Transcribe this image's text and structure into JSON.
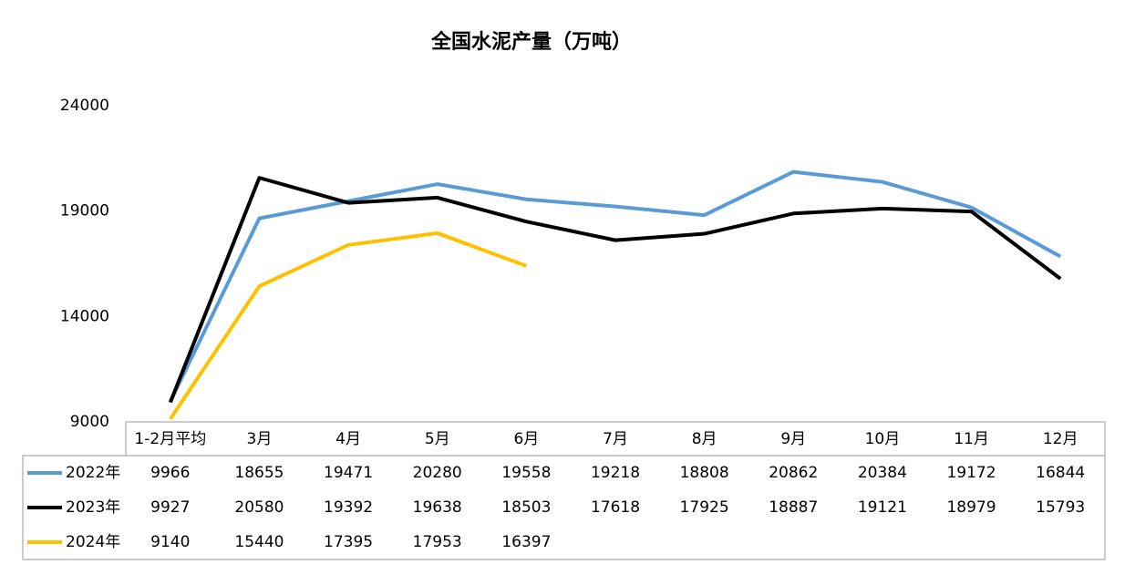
{
  "chart_data": {
    "type": "line",
    "title": "全国水泥产量（万吨）",
    "categories": [
      "1-2月平均",
      "3月",
      "4月",
      "5月",
      "6月",
      "7月",
      "8月",
      "9月",
      "10月",
      "11月",
      "12月"
    ],
    "series": [
      {
        "name": "2022年",
        "color": "#5b9bd5",
        "values": [
          9966,
          18655,
          19471,
          20280,
          19558,
          19218,
          18808,
          20862,
          20384,
          19172,
          16844
        ]
      },
      {
        "name": "2023年",
        "color": "#000000",
        "values": [
          9927,
          20580,
          19392,
          19638,
          18503,
          17618,
          17925,
          18887,
          19121,
          18979,
          15793
        ]
      },
      {
        "name": "2024年",
        "color": "#ffc000",
        "values": [
          9140,
          15440,
          17395,
          17953,
          16397,
          null,
          null,
          null,
          null,
          null,
          null
        ]
      }
    ],
    "ylim": [
      9000,
      24000
    ],
    "yticks": [
      9000,
      14000,
      19000,
      24000
    ],
    "grid": false
  }
}
